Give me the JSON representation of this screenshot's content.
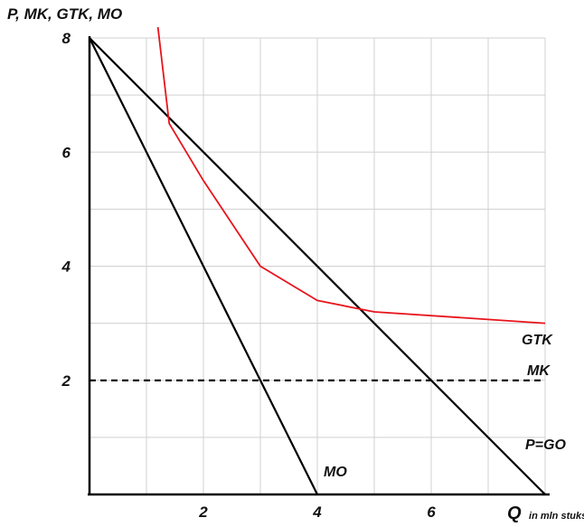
{
  "chart_data": {
    "type": "line",
    "title": "",
    "ylabel": "P, MK, GTK, MO",
    "xlabel": "Q",
    "xlabel_unit": "in mln stuks",
    "xlim": [
      0,
      8
    ],
    "ylim": [
      0,
      8
    ],
    "x_ticks": [
      "2",
      "4",
      "6"
    ],
    "y_ticks": [
      "2",
      "4",
      "6",
      "8"
    ],
    "grid": true,
    "series": [
      {
        "name": "P=GO",
        "color": "#000000",
        "dashed": false,
        "x": [
          0,
          8
        ],
        "y": [
          8,
          0
        ]
      },
      {
        "name": "MO",
        "color": "#000000",
        "dashed": false,
        "x": [
          0,
          4
        ],
        "y": [
          8,
          0
        ]
      },
      {
        "name": "MK",
        "color": "#000000",
        "dashed": true,
        "x": [
          0,
          8
        ],
        "y": [
          2,
          2
        ]
      },
      {
        "name": "GTK",
        "color": "#e8141c",
        "dashed": false,
        "x": [
          1.2,
          1.4,
          2,
          3,
          4,
          5,
          8
        ],
        "y": [
          8.2,
          6.5,
          5.5,
          4,
          3.4,
          3.2,
          3
        ]
      }
    ]
  }
}
